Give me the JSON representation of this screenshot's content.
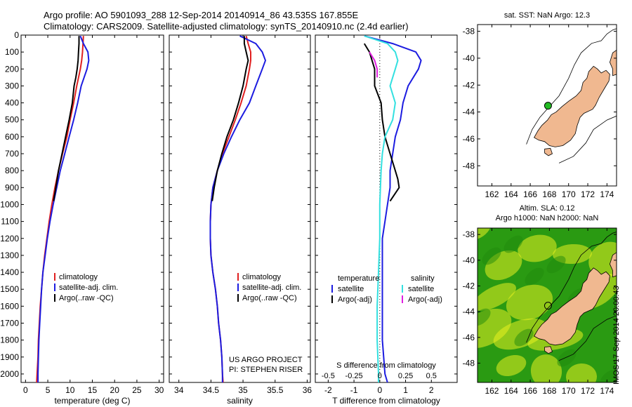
{
  "header": {
    "line1": "Argo profile: AO 5901093_288 12-Sep-2014 20140914_86 43.535S 167.855E",
    "line2": "Climatology: CARS2009. Satellite-adjusted climatology: synTS_20140910.nc (2.4d earlier)"
  },
  "colors": {
    "red": "#e02020",
    "blue": "#1c1ce0",
    "black": "#000000",
    "cyan": "#33e0e0",
    "magenta": "#e020e0",
    "land": "#f0b890",
    "marker_green": "#22bb22",
    "sla_low": "#2a9a12",
    "sla_high": "#e8f020"
  },
  "credit": "IMOS 17-Sep-2014 20:00:43",
  "chart_data": [
    {
      "type": "line",
      "panel": "temperature",
      "xlabel": "temperature (deg C)",
      "xlim": [
        -1,
        31
      ],
      "xticks": [
        0,
        5,
        10,
        15,
        20,
        25,
        30
      ],
      "ylim": [
        0,
        2050
      ],
      "yticks": [
        0,
        100,
        200,
        300,
        400,
        500,
        600,
        700,
        800,
        900,
        1000,
        1100,
        1200,
        1300,
        1400,
        1500,
        1600,
        1700,
        1800,
        1900,
        2000
      ],
      "legend": [
        "climatology",
        "satellite-adj. clim.",
        "Argo(..raw -QC)"
      ],
      "series": [
        {
          "name": "climatology",
          "color": "red",
          "points": [
            [
              13,
              5
            ],
            [
              12.9,
              50
            ],
            [
              12.8,
              100
            ],
            [
              12.6,
              150
            ],
            [
              12.3,
              200
            ],
            [
              11.5,
              300
            ],
            [
              10.8,
              400
            ],
            [
              10,
              500
            ],
            [
              9.3,
              600
            ],
            [
              8.3,
              700
            ],
            [
              7.4,
              800
            ],
            [
              6.6,
              900
            ],
            [
              5.9,
              1000
            ],
            [
              5.3,
              1100
            ],
            [
              4.8,
              1200
            ],
            [
              4.3,
              1300
            ],
            [
              3.9,
              1400
            ],
            [
              3.6,
              1500
            ],
            [
              3.3,
              1600
            ],
            [
              3.1,
              1700
            ],
            [
              2.9,
              1800
            ],
            [
              2.8,
              1900
            ],
            [
              2.6,
              2000
            ],
            [
              2.5,
              2050
            ]
          ]
        },
        {
          "name": "satellite-adj. clim.",
          "color": "blue",
          "points": [
            [
              12.3,
              5
            ],
            [
              13,
              50
            ],
            [
              14,
              100
            ],
            [
              14.2,
              150
            ],
            [
              13.8,
              200
            ],
            [
              12.5,
              300
            ],
            [
              11.7,
              400
            ],
            [
              10.8,
              500
            ],
            [
              9.8,
              600
            ],
            [
              8.8,
              700
            ],
            [
              7.8,
              800
            ],
            [
              7,
              900
            ],
            [
              6.2,
              1000
            ],
            [
              5.5,
              1100
            ],
            [
              4.9,
              1200
            ],
            [
              4.4,
              1300
            ],
            [
              3.9,
              1400
            ],
            [
              3.6,
              1500
            ],
            [
              3.4,
              1600
            ],
            [
              3.2,
              1700
            ],
            [
              3,
              1800
            ],
            [
              2.9,
              1900
            ],
            [
              2.8,
              2000
            ],
            [
              2.8,
              2050
            ]
          ]
        },
        {
          "name": "Argo(..raw -QC)",
          "color": "black",
          "points": [
            [
              12,
              5
            ],
            [
              12,
              50
            ],
            [
              11.9,
              100
            ],
            [
              11.8,
              150
            ],
            [
              11.6,
              200
            ],
            [
              11.3,
              250
            ],
            [
              10.9,
              300
            ],
            [
              10.5,
              400
            ],
            [
              9.8,
              500
            ],
            [
              9,
              600
            ],
            [
              8.2,
              700
            ],
            [
              7.4,
              800
            ],
            [
              6.8,
              900
            ],
            [
              6.3,
              980
            ]
          ]
        }
      ]
    },
    {
      "type": "line",
      "panel": "salinity",
      "xlabel": "salinity",
      "xlim": [
        33.85,
        36.05
      ],
      "xticks": [
        34,
        34.5,
        35,
        35.5,
        36
      ],
      "ylim": [
        0,
        2050
      ],
      "legend": [
        "climatology",
        "satellite-adj. clim.",
        "Argo(..raw -QC)"
      ],
      "annotation": [
        "US ARGO PROJECT",
        "PI: STEPHEN RISER"
      ],
      "series": [
        {
          "name": "climatology",
          "color": "red",
          "points": [
            [
              35.05,
              5
            ],
            [
              35.08,
              50
            ],
            [
              35.12,
              100
            ],
            [
              35.12,
              150
            ],
            [
              35.1,
              200
            ],
            [
              35.05,
              300
            ],
            [
              34.97,
              400
            ],
            [
              34.88,
              500
            ],
            [
              34.78,
              600
            ],
            [
              34.68,
              700
            ],
            [
              34.6,
              800
            ],
            [
              34.53,
              900
            ],
            [
              34.5,
              1000
            ],
            [
              34.49,
              1100
            ],
            [
              34.49,
              1200
            ],
            [
              34.5,
              1300
            ],
            [
              34.53,
              1400
            ],
            [
              34.57,
              1500
            ],
            [
              34.6,
              1600
            ],
            [
              34.62,
              1700
            ],
            [
              34.65,
              1800
            ],
            [
              34.67,
              1900
            ],
            [
              34.68,
              2000
            ],
            [
              34.69,
              2050
            ]
          ]
        },
        {
          "name": "satellite-adj. clim.",
          "color": "blue",
          "points": [
            [
              34.95,
              5
            ],
            [
              35.2,
              50
            ],
            [
              35.3,
              100
            ],
            [
              35.35,
              150
            ],
            [
              35.3,
              200
            ],
            [
              35.2,
              300
            ],
            [
              35.1,
              400
            ],
            [
              34.95,
              500
            ],
            [
              34.82,
              600
            ],
            [
              34.7,
              700
            ],
            [
              34.6,
              800
            ],
            [
              34.53,
              900
            ],
            [
              34.5,
              1000
            ],
            [
              34.49,
              1100
            ],
            [
              34.49,
              1200
            ],
            [
              34.5,
              1300
            ],
            [
              34.53,
              1400
            ],
            [
              34.57,
              1500
            ],
            [
              34.6,
              1600
            ],
            [
              34.62,
              1700
            ],
            [
              34.65,
              1800
            ],
            [
              34.67,
              1900
            ],
            [
              34.68,
              2000
            ],
            [
              34.68,
              2050
            ]
          ]
        },
        {
          "name": "Argo(..raw -QC)",
          "color": "black",
          "points": [
            [
              35.02,
              5
            ],
            [
              35.02,
              50
            ],
            [
              35.05,
              100
            ],
            [
              35.08,
              150
            ],
            [
              35.05,
              200
            ],
            [
              35.0,
              300
            ],
            [
              34.93,
              400
            ],
            [
              34.85,
              500
            ],
            [
              34.75,
              600
            ],
            [
              34.67,
              700
            ],
            [
              34.6,
              800
            ],
            [
              34.55,
              900
            ],
            [
              34.52,
              980
            ]
          ]
        }
      ]
    },
    {
      "type": "line",
      "panel": "difference",
      "xlabel": "T difference from climatology",
      "xlabel_top": "S difference from climatology",
      "xlim": [
        -2.5,
        3
      ],
      "xticks": [
        -2,
        -1,
        0,
        1,
        2
      ],
      "xticks_top": [
        "-0.5",
        "-0.25",
        "0",
        "0.25",
        "0.5"
      ],
      "ylim": [
        0,
        2050
      ],
      "legend_headers": [
        "temperature",
        "salinity"
      ],
      "legend": [
        "satellite",
        "Argo(-adj)",
        "satellite",
        "Argo(-adj)"
      ],
      "series": [
        {
          "name": "satellite",
          "quantity": "temperature",
          "color": "blue",
          "points": [
            [
              -0.6,
              5
            ],
            [
              0.5,
              50
            ],
            [
              1.4,
              100
            ],
            [
              1.6,
              150
            ],
            [
              1.5,
              200
            ],
            [
              1.1,
              300
            ],
            [
              0.9,
              400
            ],
            [
              0.8,
              500
            ],
            [
              0.6,
              600
            ],
            [
              0.5,
              700
            ],
            [
              0.4,
              800
            ],
            [
              0.4,
              900
            ],
            [
              0.3,
              1000
            ],
            [
              0.2,
              1100
            ],
            [
              0.1,
              1200
            ],
            [
              0.1,
              1400
            ],
            [
              0.1,
              1600
            ],
            [
              0.1,
              1800
            ],
            [
              0.2,
              2000
            ],
            [
              0.3,
              2050
            ]
          ]
        },
        {
          "name": "Argo(-adj)",
          "quantity": "temperature",
          "color": "black",
          "points": [
            [
              -0.6,
              50
            ],
            [
              -0.4,
              100
            ],
            [
              -0.2,
              200
            ],
            [
              -0.2,
              300
            ],
            [
              0.05,
              400
            ],
            [
              0.1,
              500
            ],
            [
              0.2,
              600
            ],
            [
              0.4,
              700
            ],
            [
              0.6,
              800
            ],
            [
              0.7,
              850
            ],
            [
              0.75,
              900
            ],
            [
              0.4,
              980
            ]
          ]
        },
        {
          "name": "satellite",
          "quantity": "salinity",
          "color": "cyan",
          "points": [
            [
              -0.6,
              5
            ],
            [
              0.3,
              50
            ],
            [
              0.6,
              100
            ],
            [
              0.7,
              150
            ],
            [
              0.6,
              200
            ],
            [
              0.4,
              300
            ],
            [
              0.6,
              400
            ],
            [
              0.5,
              500
            ],
            [
              0.2,
              600
            ],
            [
              0.1,
              700
            ],
            [
              0.05,
              800
            ],
            [
              0,
              1000
            ],
            [
              0,
              1200
            ],
            [
              -0.05,
              1400
            ],
            [
              -0.1,
              1600
            ],
            [
              -0.1,
              1800
            ],
            [
              -0.05,
              2000
            ],
            [
              -0.05,
              2050
            ]
          ]
        },
        {
          "name": "Argo(-adj)",
          "quantity": "salinity",
          "color": "magenta",
          "points": [
            [
              -0.4,
              100
            ],
            [
              -0.2,
              150
            ],
            [
              -0.1,
              200
            ],
            [
              -0.1,
              250
            ]
          ]
        }
      ]
    },
    {
      "type": "map",
      "panel": "sst-map",
      "title": "sat. SST: NaN Argo: 12.3",
      "xlim": [
        160.5,
        175
      ],
      "ylim": [
        -49.5,
        -37.5
      ],
      "xticks": [
        162,
        164,
        166,
        168,
        170,
        172,
        174
      ],
      "yticks": [
        -38,
        -40,
        -42,
        -44,
        -46,
        -48
      ],
      "marker": {
        "lon": 167.855,
        "lat": -43.535
      }
    },
    {
      "type": "map",
      "panel": "sla-map",
      "title_lines": [
        "Altim. SLA: 0.12",
        "Argo h1000: NaN h2000: NaN"
      ],
      "xlim": [
        160.5,
        175
      ],
      "ylim": [
        -49.5,
        -37.5
      ],
      "xticks": [
        162,
        164,
        166,
        168,
        170,
        172,
        174
      ],
      "yticks": [
        -38,
        -40,
        -42,
        -44,
        -46,
        -48
      ],
      "marker": {
        "lon": 167.855,
        "lat": -43.535
      }
    }
  ]
}
